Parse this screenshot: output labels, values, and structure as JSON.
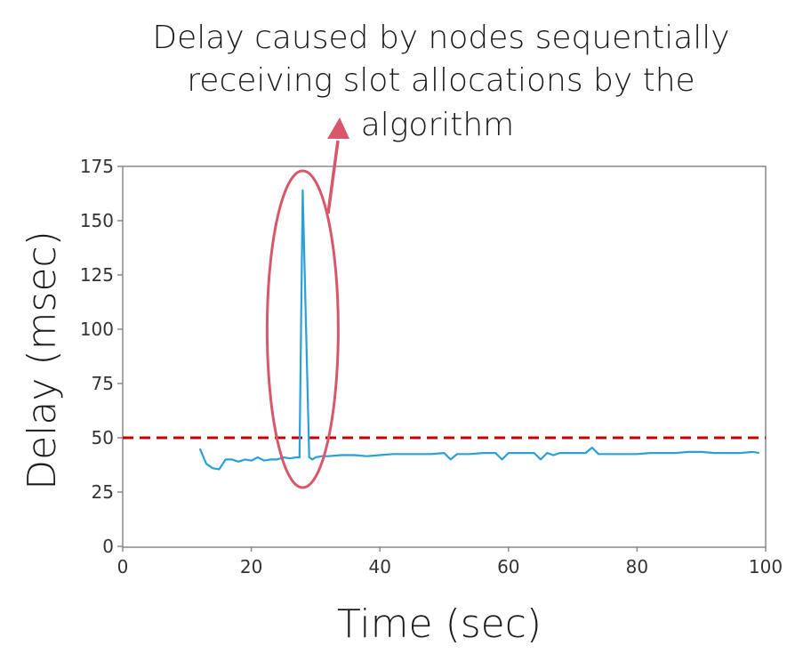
{
  "chart_data": {
    "type": "line",
    "title": "",
    "xlabel": "Time (sec)",
    "ylabel": "Delay (msec)",
    "xlim": [
      0,
      100
    ],
    "ylim": [
      0,
      175
    ],
    "x_ticks": [
      "0",
      "20",
      "40",
      "60",
      "80",
      "100"
    ],
    "y_ticks": [
      "0",
      "25",
      "50",
      "75",
      "100",
      "125",
      "150",
      "175"
    ],
    "grid": false,
    "threshold": {
      "value": 50,
      "style": "dashed",
      "color": "#c00000"
    },
    "annotation": {
      "lines": [
        "Delay caused by nodes sequentially",
        "receiving slot allocations by the",
        "algorithm"
      ],
      "highlight_x": 28,
      "color": "#d9576a"
    },
    "series": [
      {
        "color": "#2b9fd8",
        "points": [
          [
            12,
            45
          ],
          [
            13,
            38
          ],
          [
            14,
            36
          ],
          [
            15,
            35.5
          ],
          [
            16,
            40
          ],
          [
            17,
            40
          ],
          [
            18,
            39
          ],
          [
            19,
            40
          ],
          [
            20,
            39.5
          ],
          [
            21,
            41
          ],
          [
            22,
            39.5
          ],
          [
            23,
            40
          ],
          [
            24,
            40
          ],
          [
            25,
            41
          ],
          [
            26,
            40.5
          ],
          [
            27,
            41
          ],
          [
            27.5,
            41
          ],
          [
            28,
            164
          ],
          [
            29,
            41
          ],
          [
            29.5,
            40
          ],
          [
            30,
            41
          ],
          [
            31,
            41.5
          ],
          [
            32,
            41.5
          ],
          [
            34,
            42
          ],
          [
            36,
            42
          ],
          [
            38,
            41.5
          ],
          [
            40,
            42
          ],
          [
            42,
            42.5
          ],
          [
            44,
            42.5
          ],
          [
            46,
            42.5
          ],
          [
            48,
            42.5
          ],
          [
            50,
            43
          ],
          [
            51,
            40
          ],
          [
            52,
            42.5
          ],
          [
            54,
            42.5
          ],
          [
            56,
            43
          ],
          [
            58,
            43
          ],
          [
            59,
            40
          ],
          [
            60,
            43
          ],
          [
            62,
            43
          ],
          [
            64,
            43
          ],
          [
            65,
            40
          ],
          [
            66,
            43
          ],
          [
            67,
            42
          ],
          [
            68,
            43
          ],
          [
            70,
            43
          ],
          [
            72,
            43
          ],
          [
            73,
            45.5
          ],
          [
            74,
            42.5
          ],
          [
            76,
            42.5
          ],
          [
            78,
            42.5
          ],
          [
            80,
            42.5
          ],
          [
            82,
            43
          ],
          [
            84,
            43
          ],
          [
            86,
            43
          ],
          [
            88,
            43.5
          ],
          [
            90,
            43.5
          ],
          [
            92,
            43
          ],
          [
            94,
            43
          ],
          [
            96,
            43
          ],
          [
            98,
            43.5
          ],
          [
            99,
            43
          ]
        ]
      }
    ]
  },
  "colors": {
    "line": "#2b9fd8",
    "threshold": "#c00000",
    "annotation": "#d9576a",
    "frame": "#8a8a8a"
  }
}
